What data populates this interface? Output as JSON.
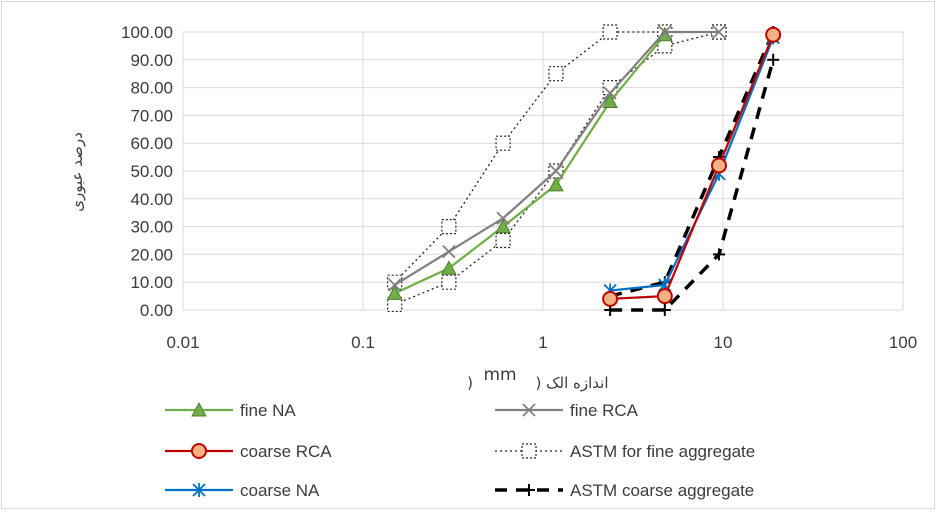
{
  "chart_data": {
    "type": "line",
    "xscale": "log",
    "xlim": [
      0.01,
      100
    ],
    "ylim": [
      0,
      100
    ],
    "xticks": [
      {
        "value": 0.01,
        "label": "0.01"
      },
      {
        "value": 0.1,
        "label": "0.1"
      },
      {
        "value": 1,
        "label": "1"
      },
      {
        "value": 10,
        "label": "10"
      },
      {
        "value": 100,
        "label": "100"
      }
    ],
    "yticks": [
      {
        "value": 0,
        "label": "0.00"
      },
      {
        "value": 10,
        "label": "10.00"
      },
      {
        "value": 20,
        "label": "20.00"
      },
      {
        "value": 30,
        "label": "30.00"
      },
      {
        "value": 40,
        "label": "40.00"
      },
      {
        "value": 50,
        "label": "50.00"
      },
      {
        "value": 60,
        "label": "60.00"
      },
      {
        "value": 70,
        "label": "70.00"
      },
      {
        "value": 80,
        "label": "80.00"
      },
      {
        "value": 90,
        "label": "90.00"
      },
      {
        "value": 100,
        "label": "100.00"
      }
    ],
    "xlabel": "اندازه الک (",
    "xlabel_unit": "mm",
    "xlabel_close": ")",
    "ylabel": "درصد عبوری",
    "grid": true,
    "legend": "bottom",
    "series": [
      {
        "name": "fine NA",
        "color": "#70ad47",
        "line": "solid",
        "marker": "triangle",
        "x": [
          0.15,
          0.3,
          0.6,
          1.18,
          2.36,
          4.75
        ],
        "y": [
          6,
          15,
          30,
          45,
          75,
          99
        ]
      },
      {
        "name": "fine RCA",
        "color": "#808080",
        "line": "solid",
        "marker": "x",
        "x": [
          0.15,
          0.3,
          0.6,
          1.18,
          2.36,
          4.75,
          9.5
        ],
        "y": [
          9,
          21,
          33,
          50,
          78,
          100,
          100
        ]
      },
      {
        "name": "coarse RCA",
        "color": "#c00000",
        "line": "solid",
        "marker": "circle",
        "x": [
          2.36,
          4.75,
          9.5,
          19
        ],
        "y": [
          4,
          5,
          52,
          99
        ]
      },
      {
        "name": "ASTM for fine aggregate",
        "color": "#222222",
        "line": "dotted",
        "marker": "diamond",
        "pair": true,
        "x": [
          0.15,
          0.3,
          0.6,
          1.18,
          2.36,
          4.75,
          9.5
        ],
        "y": [
          10,
          30,
          60,
          85,
          100,
          100,
          100
        ],
        "x2": [
          0.15,
          0.3,
          0.6,
          1.18,
          2.36,
          4.75,
          9.5
        ],
        "y2": [
          2,
          10,
          25,
          50,
          80,
          95,
          100
        ]
      },
      {
        "name": "coarse NA",
        "color": "#0070c0",
        "line": "solid",
        "marker": "asterisk",
        "x": [
          2.36,
          4.75,
          9.5,
          19
        ],
        "y": [
          7,
          9,
          49,
          98
        ]
      },
      {
        "name": "ASTM coarse aggregate",
        "color": "#000000",
        "line": "dashed",
        "marker": "plus",
        "pair": true,
        "x": [
          2.36,
          4.75,
          9.5,
          19
        ],
        "y": [
          5,
          10,
          55,
          100
        ],
        "x2": [
          2.36,
          4.75,
          9.5,
          19
        ],
        "y2": [
          0,
          0,
          20,
          90
        ]
      }
    ]
  }
}
